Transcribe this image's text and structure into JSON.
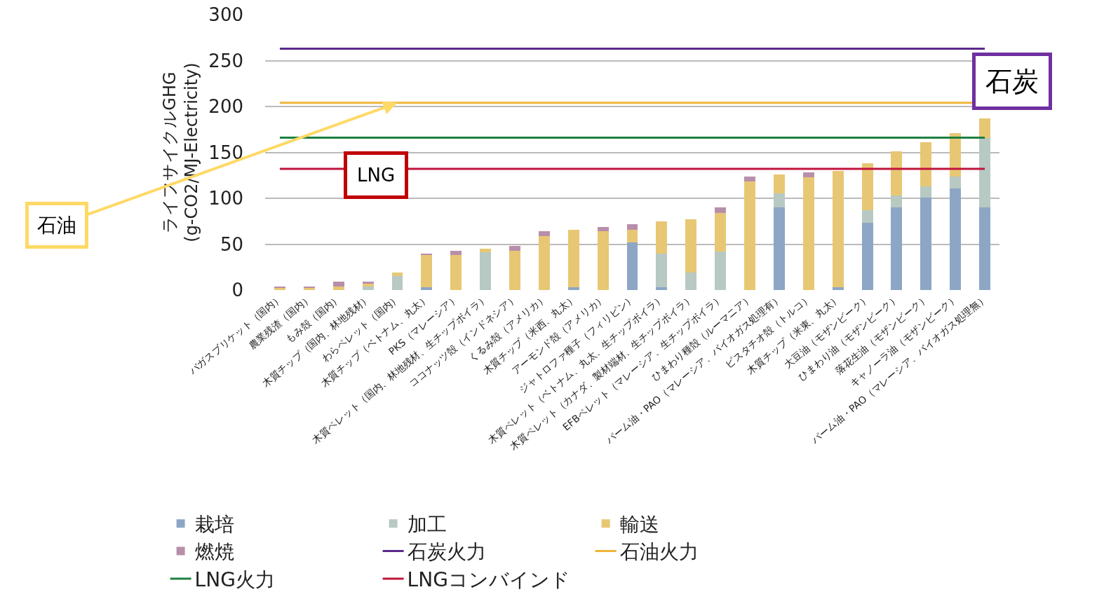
{
  "chart_data": {
    "type": "bar",
    "stacked": true,
    "ylabel": "ライフサイクルGHG\n(g-CO2/MJ-Electricity)",
    "categories": [
      "バガスブリケット（国内）",
      "農業残渣（国内）",
      "もみ殻（国内）",
      "木質チップ（国内、林地残材）",
      "わらペレット（国内）",
      "木質チップ（ベトナム、丸太）",
      "PKS（マレーシア）",
      "木質ペレット（国内、林地残材、生チップボイラ）",
      "ココナッツ殻（インドネシア）",
      "くるみ殻（アメリカ）",
      "木質チップ（米西、丸太）",
      "アーモンド殻（アメリカ）",
      "ジャトロファ種子（フィリピン）",
      "木質ペレット（ベトナム、丸太、生チップボイラ）",
      "木質ペレット（カナダ、製材端材、生チップボイラ）",
      "EFBペレット（マレーシア、生チップボイラ）",
      "ひまわり種殻（ルーマニア）",
      "パーム油・PAO（マレーシア、バイオガス処理有）",
      "ピスタチオ殻（トルコ）",
      "木質チップ（米東、丸太）",
      "大豆油（モザンビーク）",
      "ひまわり油（モザンビーク）",
      "落花生油（モザンビーク）",
      "キャノーラ油（モザンビーク）",
      "パーム油・PAO（マレーシア、バイオガス処理無）"
    ],
    "series": [
      {
        "name": "栽培",
        "color": "#8da6c5",
        "values": [
          0,
          0,
          0,
          0,
          0,
          3,
          0,
          0,
          0,
          0,
          3,
          0,
          52,
          3,
          0,
          0,
          0,
          90,
          0,
          3,
          73,
          90,
          101,
          111,
          90
        ]
      },
      {
        "name": "加工",
        "color": "#b7c9c2",
        "values": [
          null,
          null,
          0,
          4,
          15,
          0,
          0,
          41,
          0,
          0,
          0,
          0,
          0,
          37,
          19,
          42,
          0,
          15,
          0,
          0,
          14,
          13,
          12,
          13,
          76
        ]
      },
      {
        "name": "輸送",
        "color": "#e8c774",
        "values": [
          3,
          3,
          4,
          3,
          4,
          35,
          38,
          4,
          43,
          59,
          63,
          64,
          14,
          35,
          58,
          42,
          118,
          21,
          123,
          127,
          51,
          48,
          48,
          47,
          21
        ]
      },
      {
        "name": "燃焼",
        "color": "#b88faa",
        "values": [
          1,
          1,
          5,
          2,
          0,
          2,
          5,
          0,
          5,
          5,
          0,
          5,
          6,
          0,
          0,
          6,
          6,
          0,
          5,
          0,
          0,
          0,
          0,
          0,
          0
        ]
      }
    ],
    "ref_lines": [
      {
        "axis": "y",
        "value": 263,
        "label": "石炭火力",
        "color": "#5b2a8c"
      },
      {
        "axis": "y",
        "value": 204,
        "label": "石油火力",
        "color": "#f0b43a"
      },
      {
        "axis": "y",
        "value": 166,
        "label": "LNG火力",
        "color": "#1e8040"
      },
      {
        "axis": "y",
        "value": 132,
        "label": "LNGコンバインド",
        "color": "#c0143c"
      }
    ],
    "annotations": [
      "石炭",
      {
        "text": "石油",
        "x": "わらペレット（国内）",
        "y": 204
      },
      "LNG"
    ],
    "ylim": [
      0,
      300
    ],
    "yticks": [
      0,
      50,
      100,
      150,
      200,
      250,
      300
    ],
    "grid": "y",
    "legend": "bottom"
  }
}
